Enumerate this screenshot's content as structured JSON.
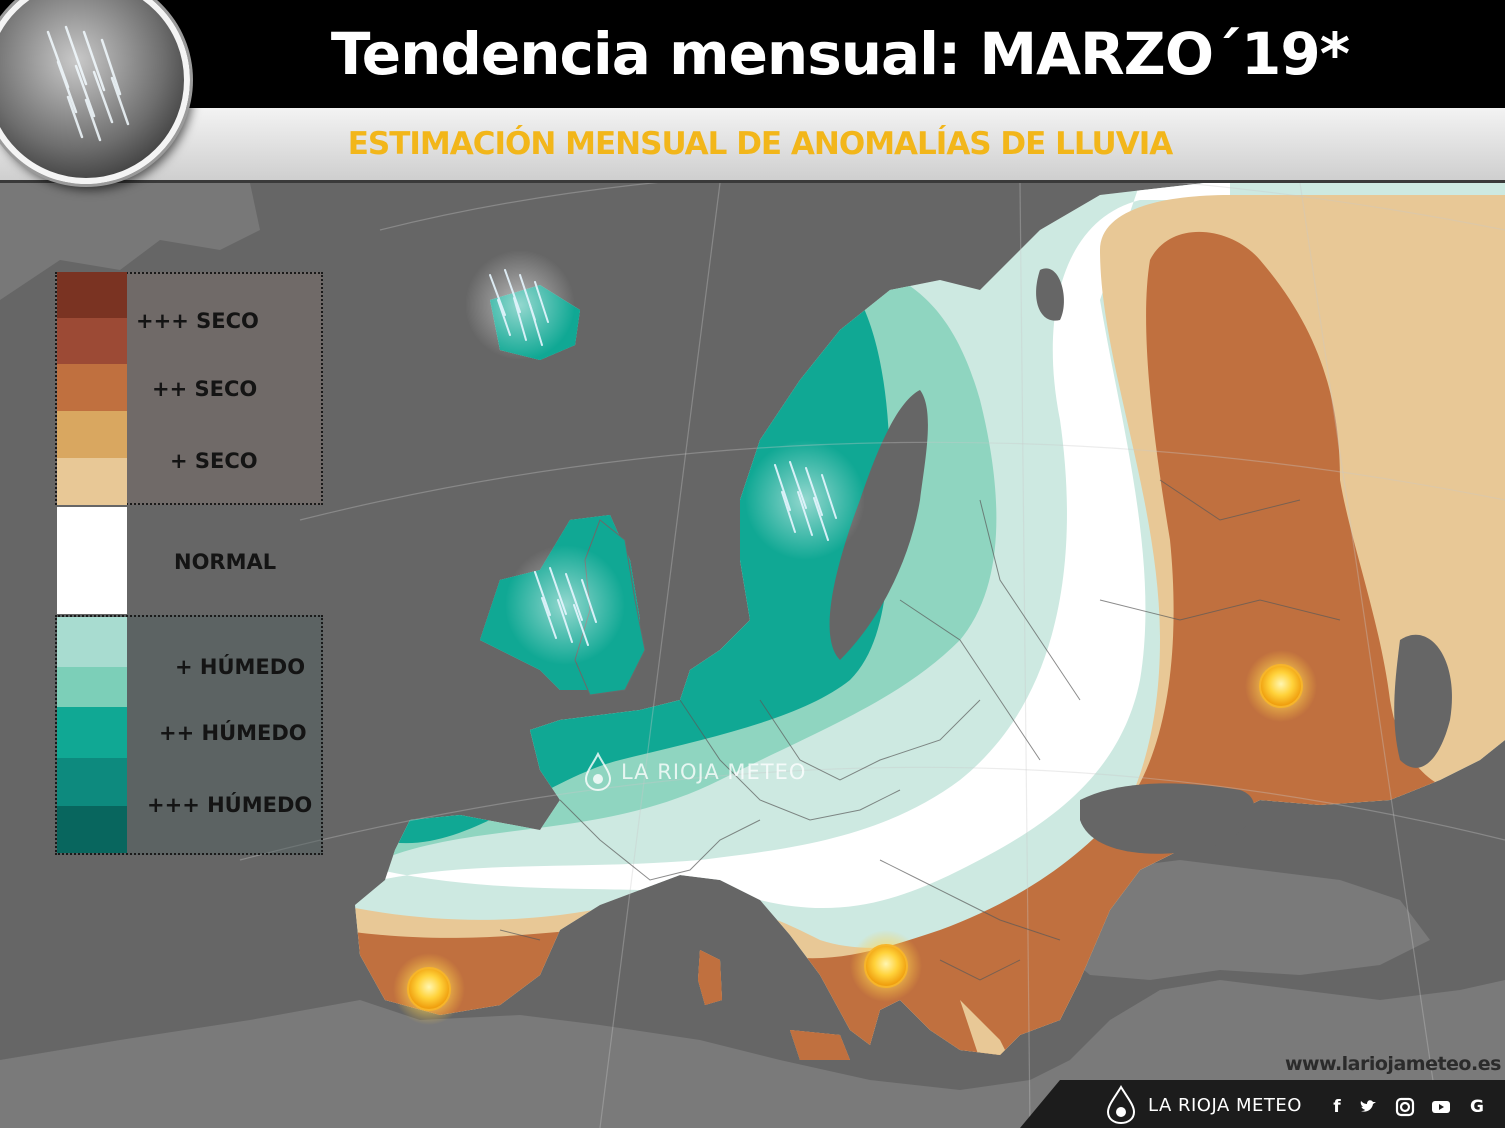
{
  "header": {
    "title": "Tendencia mensual: MARZO´19*",
    "subtitle": "ESTIMACIÓN MENSUAL DE ANOMALÍAS DE LLUVIA"
  },
  "legend": {
    "dry_colors": [
      "#7a3322",
      "#9c4a35",
      "#c0703f",
      "#d9a760",
      "#e8c896"
    ],
    "normal_color": "#ffffff",
    "wet_colors": [
      "#a8dcd0",
      "#7ccfb8",
      "#10a894",
      "#0d8a7e",
      "#08665e"
    ],
    "labels": [
      {
        "key": "dry3",
        "text": "+++ SECO"
      },
      {
        "key": "dry2",
        "text": "++ SECO"
      },
      {
        "key": "dry1",
        "text": "+ SECO"
      },
      {
        "key": "normal",
        "text": "NORMAL"
      },
      {
        "key": "wet1",
        "text": "+ HÚMEDO"
      },
      {
        "key": "wet2",
        "text": "++ HÚMEDO"
      },
      {
        "key": "wet3",
        "text": "+++ HÚMEDO"
      }
    ]
  },
  "map": {
    "sea_color": "#666666",
    "land_color": "#7d7d7d",
    "wet_markers": [
      "rain-icon-iceland",
      "rain-icon-scandinavia",
      "rain-icon-ireland"
    ],
    "dry_markers": [
      "sun-icon-russia",
      "sun-icon-italy",
      "sun-icon-iberia"
    ]
  },
  "watermark": "LA RIOJA METEO",
  "footer": {
    "url": "www.lariojameteo.es",
    "brand": "LA RIOJA METEO",
    "social": [
      "facebook-icon",
      "twitter-icon",
      "instagram-icon",
      "youtube-icon",
      "google-icon"
    ]
  }
}
